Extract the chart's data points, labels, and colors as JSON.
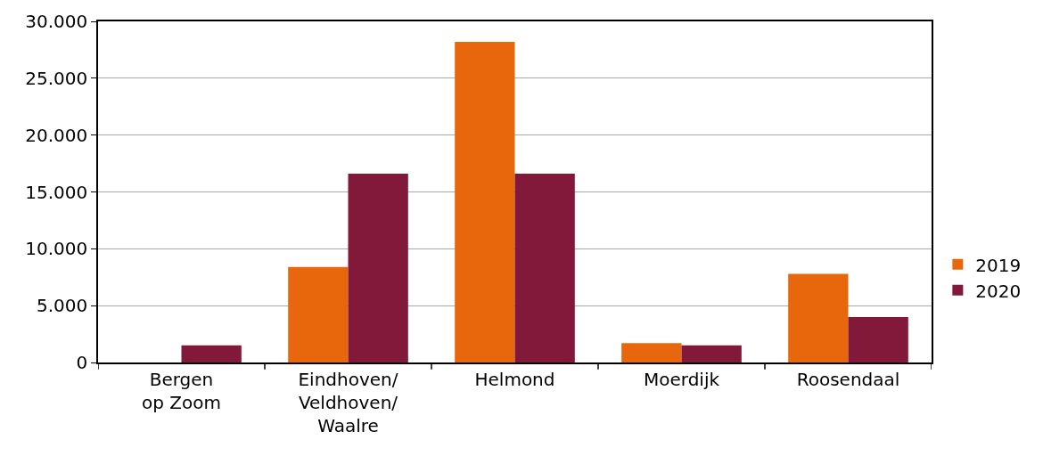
{
  "chart_data": {
    "type": "bar",
    "categories": [
      "Bergen op Zoom",
      "Eindhoven/Veldhoven/Waalre",
      "Helmond",
      "Moerdijk",
      "Roosendaal"
    ],
    "series": [
      {
        "name": "2019",
        "color": "#e8670c",
        "values": [
          null,
          8400,
          28200,
          1700,
          7800
        ]
      },
      {
        "name": "2020",
        "color": "#82183a",
        "values": [
          1500,
          16600,
          16600,
          1500,
          4000
        ]
      }
    ],
    "ylim": [
      0,
      30000
    ],
    "yticks": [
      {
        "value": 0,
        "label": "0"
      },
      {
        "value": 5000,
        "label": "5.000"
      },
      {
        "value": 10000,
        "label": "10.000"
      },
      {
        "value": 15000,
        "label": "15.000"
      },
      {
        "value": 20000,
        "label": "20.000"
      },
      {
        "value": 25000,
        "label": "25.000"
      },
      {
        "value": 30000,
        "label": "30.000"
      }
    ],
    "grid": "y",
    "legend": "right"
  }
}
